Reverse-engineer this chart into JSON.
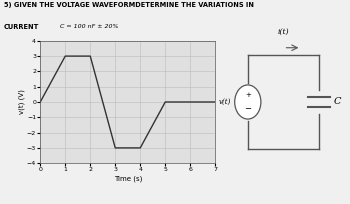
{
  "title_line1": "5) GIVEN THE VOLTAGE WAVEFORMDETERMINE THE VARIATIONS IN",
  "title_line2": "CURRENT",
  "subtitle": "C = 100 nF ± 20%",
  "waveform_x": [
    0,
    1,
    2,
    3,
    4,
    5,
    7
  ],
  "waveform_y": [
    0,
    3,
    3,
    -3,
    -3,
    0,
    0
  ],
  "xlabel": "Time (s)",
  "ylabel": "v(t) (V)",
  "xlim": [
    0,
    7
  ],
  "ylim": [
    -4,
    4
  ],
  "xticks": [
    0,
    1,
    2,
    3,
    4,
    5,
    6,
    7
  ],
  "yticks": [
    -4,
    -3,
    -2,
    -1,
    0,
    1,
    2,
    3,
    4
  ],
  "line_color": "#333333",
  "grid_color": "#bbbbbb",
  "bg_color": "#f0f0f0",
  "plot_bg": "#e0e0e0",
  "circuit_line_color": "#555555"
}
